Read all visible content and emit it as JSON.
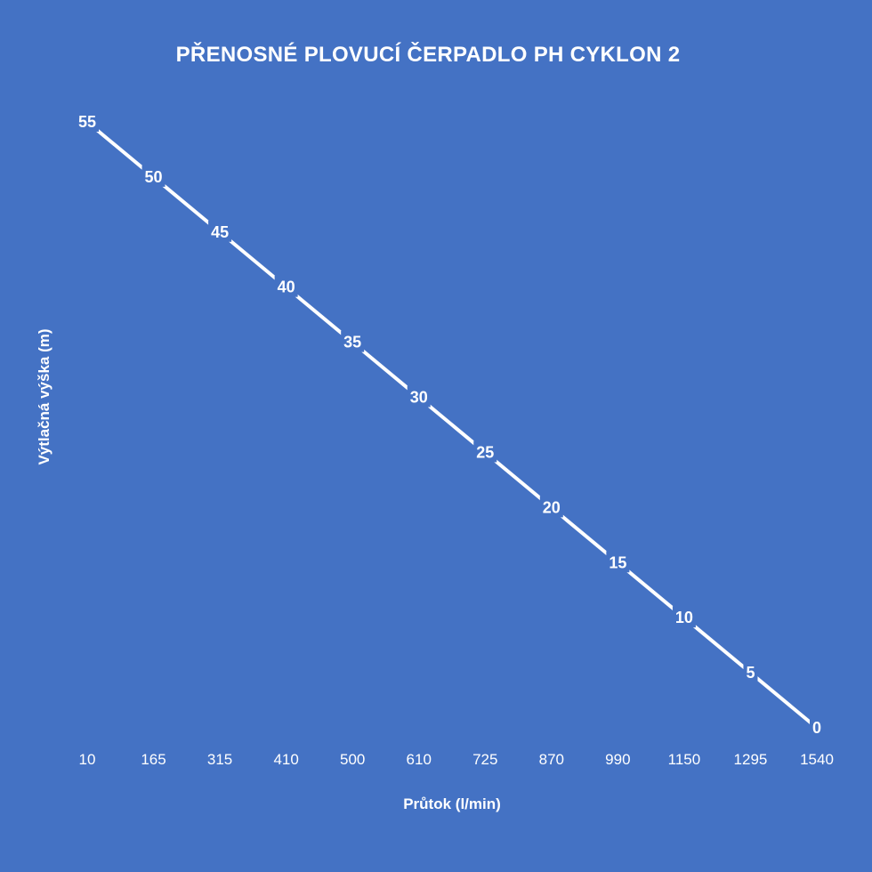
{
  "chart_data": {
    "type": "line",
    "title": "PŘENOSNÉ PLOVUCÍ ČERPADLO PH CYKLON 2",
    "xlabel": "Průtok (l/min)",
    "ylabel": "Výtlačná výška (m)",
    "categories": [
      "10",
      "165",
      "315",
      "410",
      "500",
      "610",
      "725",
      "870",
      "990",
      "1150",
      "1295",
      "1540"
    ],
    "series": [
      {
        "values": [
          55,
          50,
          45,
          40,
          35,
          30,
          25,
          20,
          15,
          10,
          5,
          0
        ]
      }
    ],
    "ylim": [
      0,
      55
    ],
    "data_labels": true,
    "drop_lines": true,
    "legend": "none",
    "grid": false,
    "colors": {
      "background": "#4472c4",
      "line": "#ffffff",
      "text": "#ffffff",
      "drop_line": "#ffffff"
    }
  }
}
